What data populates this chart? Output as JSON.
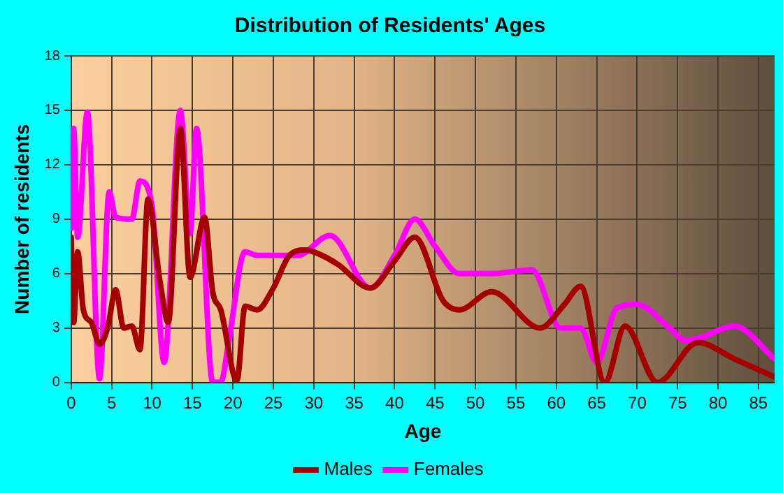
{
  "chart_data": {
    "type": "line",
    "title": "Distribution of Residents' Ages",
    "xlabel": "Age",
    "ylabel": "Number of residents",
    "xlim": [
      0,
      87
    ],
    "xticks": [
      0,
      5,
      10,
      15,
      20,
      25,
      30,
      35,
      40,
      45,
      50,
      55,
      60,
      65,
      70,
      75,
      80,
      85
    ],
    "ylim": [
      0,
      18
    ],
    "yticks": [
      0,
      3,
      6,
      9,
      12,
      15,
      18
    ],
    "grid": true,
    "legend": "bottom",
    "marker": "none",
    "line_style": "solid",
    "series": [
      {
        "name": "Males",
        "color": "#a50000",
        "x": [
          0,
          0.3,
          0.8,
          1.5,
          2.5,
          3.5,
          4.5,
          5.5,
          6.5,
          7.5,
          8.5,
          9.5,
          11,
          12,
          13.5,
          14.7,
          16.5,
          17.5,
          18.5,
          20.5,
          21.5,
          23,
          25,
          27,
          29,
          31,
          33,
          37,
          40,
          42.5,
          46,
          48,
          52,
          58,
          61,
          63,
          66,
          68.5,
          72.5,
          77.5,
          82,
          87
        ],
        "values": [
          8,
          3.3,
          7.2,
          4,
          3.3,
          2.1,
          3,
          5.1,
          3,
          3.1,
          1.8,
          10.1,
          5.5,
          3.3,
          14,
          5.8,
          9.1,
          5,
          4,
          0.1,
          4.2,
          4,
          5.2,
          7,
          7.3,
          7,
          6.5,
          5.2,
          6.7,
          8,
          4.5,
          4,
          5,
          3,
          4.3,
          5.3,
          0,
          3.1,
          0,
          2.2,
          1.3,
          0.3
        ]
      },
      {
        "name": "Females",
        "color": "#ff00ff",
        "x": [
          0,
          0.3,
          0.8,
          2,
          3.5,
          4.7,
          5.5,
          7.5,
          8.5,
          10,
          11.5,
          13.5,
          14.7,
          15.5,
          17.5,
          18.5,
          19.5,
          21.5,
          23,
          26,
          28,
          32,
          37,
          40,
          42.5,
          45,
          48,
          52,
          57,
          60.5,
          63,
          65,
          67.5,
          70,
          74,
          76,
          78,
          82,
          87
        ],
        "values": [
          8.5,
          14,
          8,
          14.9,
          0.2,
          10.5,
          9.1,
          9,
          11.1,
          9.7,
          1.1,
          15,
          8.2,
          14,
          0,
          0,
          2.3,
          7.2,
          7,
          7,
          7,
          8.1,
          5.2,
          7,
          9,
          7.5,
          6,
          6,
          6.2,
          3,
          3,
          1.1,
          4.1,
          4.3,
          3,
          2.3,
          2.5,
          3.1,
          1.3
        ]
      }
    ]
  }
}
